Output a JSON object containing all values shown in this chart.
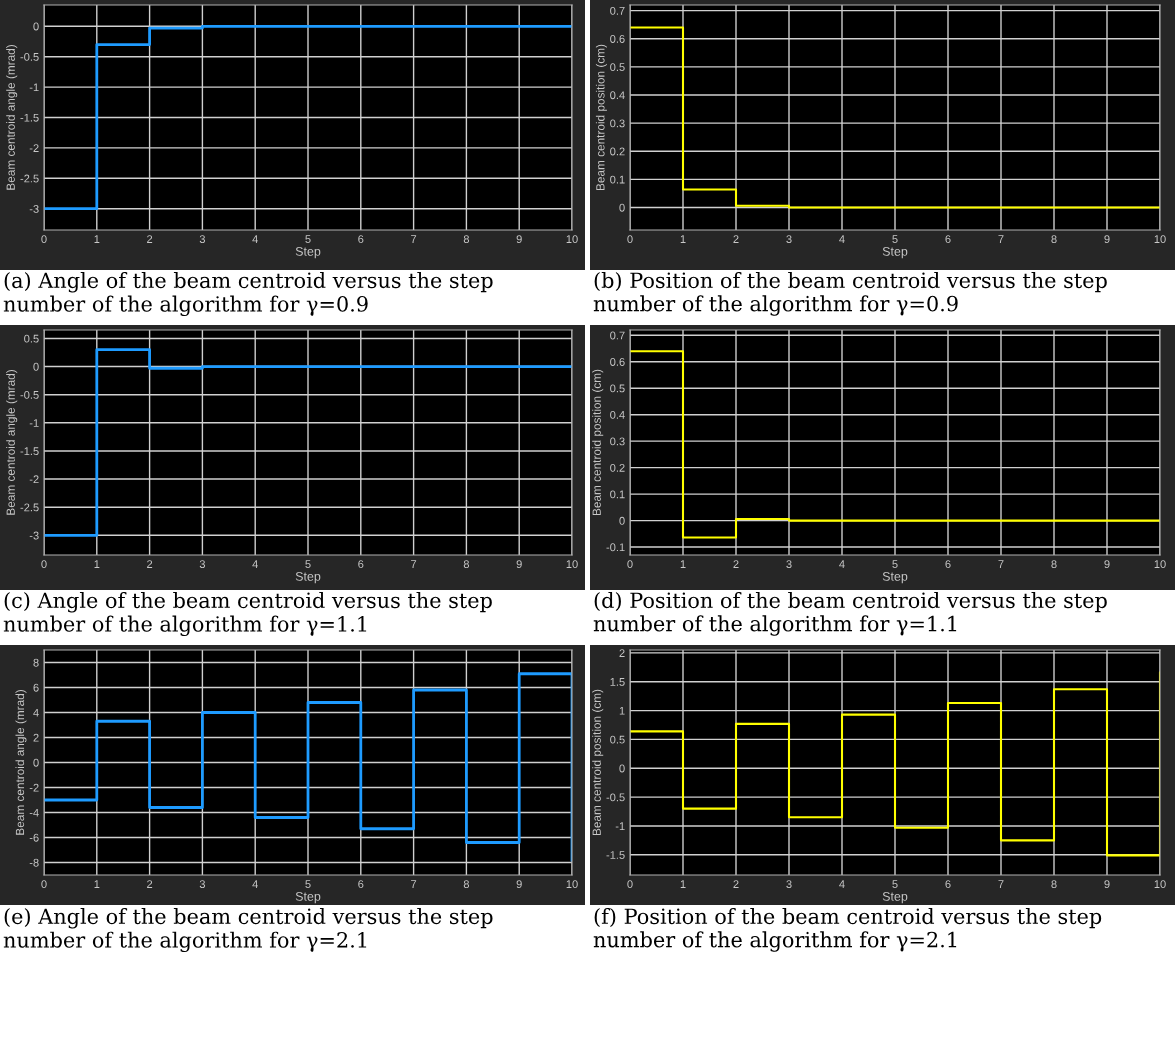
{
  "chart_data": [
    {
      "type": "step",
      "title": "(a) Angle of the beam centroid versus the step number of the algorithm for γ=0.9",
      "xlabel": "Step",
      "ylabel": "Beam centroid angle (mrad)",
      "x": [
        0,
        1,
        2,
        3,
        4,
        5,
        6,
        7,
        8,
        9,
        10
      ],
      "xlim": [
        0,
        10
      ],
      "xticks": [
        0,
        1,
        2,
        3,
        4,
        5,
        6,
        7,
        8,
        9,
        10
      ],
      "ylim": [
        -3.35,
        0.35
      ],
      "yticks": [
        -3,
        -2.5,
        -2,
        -1.5,
        -1,
        -0.5,
        0
      ],
      "grid": true,
      "series": [
        {
          "color": "#1e9bff",
          "values": [
            -3,
            -0.3,
            -0.03,
            0,
            0,
            0,
            0,
            0,
            0,
            0,
            0
          ]
        }
      ]
    },
    {
      "type": "step",
      "title": "(b) Position of the beam centroid versus the step number of the algorithm for γ=0.9",
      "xlabel": "Step",
      "ylabel": "Beam centroid position (cm)",
      "x": [
        0,
        1,
        2,
        3,
        4,
        5,
        6,
        7,
        8,
        9,
        10
      ],
      "xlim": [
        0,
        10
      ],
      "xticks": [
        0,
        1,
        2,
        3,
        4,
        5,
        6,
        7,
        8,
        9,
        10
      ],
      "ylim": [
        -0.08,
        0.72
      ],
      "yticks": [
        0,
        0.1,
        0.2,
        0.3,
        0.4,
        0.5,
        0.6,
        0.7
      ],
      "grid": true,
      "series": [
        {
          "color": "#ffff00",
          "values": [
            0.64,
            0.064,
            0.006,
            0,
            0,
            0,
            0,
            0,
            0,
            0,
            0
          ]
        }
      ]
    },
    {
      "type": "step",
      "title": "(c) Angle of the beam centroid versus the step number of the algorithm for γ=1.1",
      "xlabel": "Step",
      "ylabel": "Beam centroid angle (mrad)",
      "x": [
        0,
        1,
        2,
        3,
        4,
        5,
        6,
        7,
        8,
        9,
        10
      ],
      "xlim": [
        0,
        10
      ],
      "xticks": [
        0,
        1,
        2,
        3,
        4,
        5,
        6,
        7,
        8,
        9,
        10
      ],
      "ylim": [
        -3.35,
        0.65
      ],
      "yticks": [
        -3,
        -2.5,
        -2,
        -1.5,
        -1,
        -0.5,
        0,
        0.5
      ],
      "grid": true,
      "series": [
        {
          "color": "#1e9bff",
          "values": [
            -3,
            0.3,
            -0.03,
            0,
            0,
            0,
            0,
            0,
            0,
            0,
            0
          ]
        }
      ]
    },
    {
      "type": "step",
      "title": "(d) Position of the beam centroid versus the step number of the algorithm for γ=1.1",
      "xlabel": "Step",
      "ylabel": "Beam centroid position (cm)",
      "x": [
        0,
        1,
        2,
        3,
        4,
        5,
        6,
        7,
        8,
        9,
        10
      ],
      "xlim": [
        0,
        10
      ],
      "xticks": [
        0,
        1,
        2,
        3,
        4,
        5,
        6,
        7,
        8,
        9,
        10
      ],
      "ylim": [
        -0.13,
        0.72
      ],
      "yticks": [
        -0.1,
        0,
        0.1,
        0.2,
        0.3,
        0.4,
        0.5,
        0.6,
        0.7
      ],
      "grid": true,
      "series": [
        {
          "color": "#ffff00",
          "values": [
            0.64,
            -0.064,
            0.006,
            0,
            0,
            0,
            0,
            0,
            0,
            0,
            0
          ]
        }
      ]
    },
    {
      "type": "step",
      "title": "(e) Angle of the beam centroid versus the step number of the algorithm for γ=2.1",
      "xlabel": "Step",
      "ylabel": "Beam centroid angle (mrad)",
      "x": [
        0,
        1,
        2,
        3,
        4,
        5,
        6,
        7,
        8,
        9,
        10
      ],
      "xlim": [
        0,
        10
      ],
      "xticks": [
        0,
        1,
        2,
        3,
        4,
        5,
        6,
        7,
        8,
        9,
        10
      ],
      "ylim": [
        -9,
        9
      ],
      "yticks": [
        -8,
        -6,
        -4,
        -2,
        0,
        2,
        4,
        6,
        8
      ],
      "grid": true,
      "series": [
        {
          "color": "#1e9bff",
          "values": [
            -3,
            3.3,
            -3.6,
            4.0,
            -4.4,
            4.8,
            -5.3,
            5.8,
            -6.4,
            7.1,
            -7.8
          ]
        }
      ]
    },
    {
      "type": "step",
      "title": "(f) Position of the beam centroid versus the step number of the algorithm for γ=2.1",
      "xlabel": "Step",
      "ylabel": "Beam centroid position (cm)",
      "x": [
        0,
        1,
        2,
        3,
        4,
        5,
        6,
        7,
        8,
        9,
        10
      ],
      "xlim": [
        0,
        10
      ],
      "xticks": [
        0,
        1,
        2,
        3,
        4,
        5,
        6,
        7,
        8,
        9,
        10
      ],
      "ylim": [
        -1.85,
        2.05
      ],
      "yticks": [
        -1.5,
        -1,
        -0.5,
        0,
        0.5,
        1,
        1.5,
        2
      ],
      "grid": true,
      "series": [
        {
          "color": "#ffff00",
          "values": [
            0.64,
            -0.7,
            0.77,
            -0.85,
            0.93,
            -1.03,
            1.13,
            -1.25,
            1.37,
            -1.51,
            1.66
          ]
        }
      ]
    }
  ]
}
